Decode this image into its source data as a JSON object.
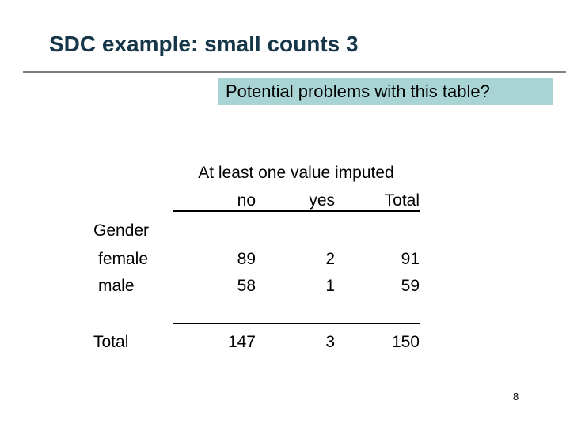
{
  "slide": {
    "title": "SDC example: small counts 3",
    "callout_text": "Potential problems with this table?",
    "page_number": "8"
  },
  "table": {
    "span_header": "At least one value imputed",
    "columns": [
      "no",
      "yes",
      "Total"
    ],
    "row_group_label": "Gender",
    "rows": [
      {
        "label": "female",
        "values": [
          "89",
          "2",
          "91"
        ]
      },
      {
        "label": "male",
        "values": [
          "58",
          "1",
          "59"
        ]
      }
    ],
    "total_row": {
      "label": "Total",
      "values": [
        "147",
        "3",
        "150"
      ]
    }
  },
  "colors": {
    "title_text": "#16374a",
    "callout_bg": "#a9d4d4",
    "divider": "#7f7f7f",
    "table_line": "#000000"
  }
}
